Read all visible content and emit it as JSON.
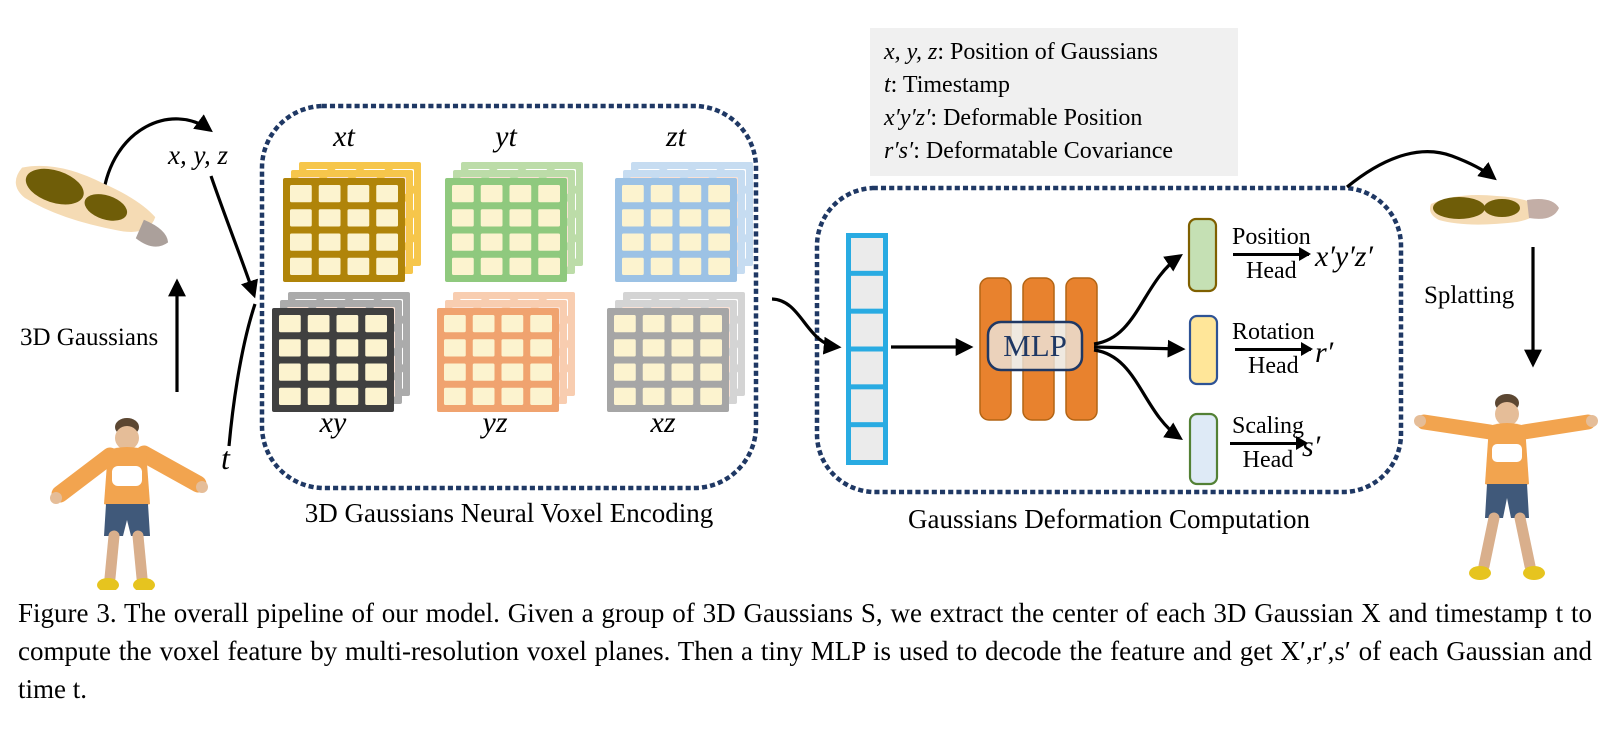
{
  "figure": {
    "caption": "Figure 3. The overall pipeline of our model. Given a group of 3D Gaussians S, we extract the center of each 3D Gaussian X and timestamp t to compute the voxel feature by multi-resolution voxel planes. Then a tiny MLP is used to decode the feature and get X′,r′,s′ of each Gaussian and time t."
  },
  "legend": {
    "lines": [
      {
        "math": "x, y, z",
        "rest": ": Position of Gaussians"
      },
      {
        "math": "t",
        "rest": ": Timestamp"
      },
      {
        "math": "x′y′z′",
        "rest": ": Deformable Position"
      },
      {
        "math": "r′s′",
        "rest": ": Deformatable Covariance"
      }
    ]
  },
  "inputs": {
    "gaussians_label": "3D Gaussians",
    "xyz_label": "x, y, z",
    "t_label": "t"
  },
  "encoder": {
    "caption": "3D Gaussians Neural Voxel Encoding",
    "planes": [
      {
        "label": "xt",
        "border": "#B08409",
        "light": "#F6C64B"
      },
      {
        "label": "yt",
        "border": "#8FC97E",
        "light": "#BCDCA8"
      },
      {
        "label": "zt",
        "border": "#9CC2E5",
        "light": "#C6DCF1"
      },
      {
        "label": "xy",
        "border": "#404040",
        "light": "#ABABAB"
      },
      {
        "label": "yz",
        "border": "#F0A36F",
        "light": "#F8CDB0"
      },
      {
        "label": "xz",
        "border": "#A6A6A6",
        "light": "#D4D4D4"
      }
    ],
    "cell_fill": "#FCF3CF",
    "mid_fill": "#FAE1D5",
    "back_fill": "#FFFFFF"
  },
  "decoder": {
    "caption": "Gaussians Deformation Computation",
    "feature_vector": {
      "cells": 6,
      "border": "#29ABE2",
      "fill": "#EBEBEB"
    },
    "mlp": {
      "label": "MLP",
      "bars": 3,
      "bar_color": "#E8822E",
      "bar_stroke": "#B26414"
    },
    "heads": [
      {
        "top": "Position",
        "bottom": "Head",
        "output": "x′y′z′",
        "fill": "#C5E0B4",
        "border": "#7F6000"
      },
      {
        "top": "Rotation",
        "bottom": "Head",
        "output": "r′",
        "fill": "#FFE699",
        "border": "#2E5395"
      },
      {
        "top": "Scaling",
        "bottom": "Head",
        "output": "s′",
        "fill": "#DEEAF6",
        "border": "#538135"
      }
    ]
  },
  "output": {
    "splatting_label": "Splatting"
  },
  "colors": {
    "outline": "#1F3864",
    "arrow": "#000000"
  }
}
